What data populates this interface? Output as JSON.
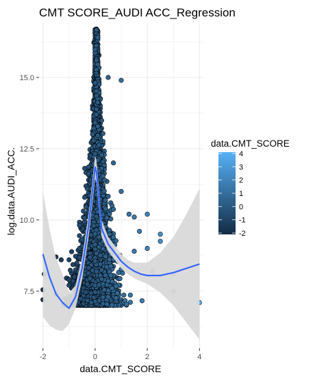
{
  "chart_data": {
    "type": "scatter",
    "title": "CMT SCORE_AUDI ACC_Regression",
    "xlabel": "data.CMT_SCORE",
    "ylabel": "log.data.AUDI_ACC.",
    "xlim": [
      -2.15,
      4.15
    ],
    "ylim": [
      5.5,
      16.9
    ],
    "x_ticks": [
      -2,
      0,
      2,
      4
    ],
    "x_tick_labels": [
      "-2",
      "0",
      "2",
      "4"
    ],
    "y_ticks": [
      7.5,
      10.0,
      12.5,
      15.0
    ],
    "y_tick_labels": [
      "7.5",
      "10.0",
      "12.5",
      "15.0"
    ],
    "grid": true,
    "legend": {
      "title": "data.CMT_SCORE",
      "placement": "right",
      "type": "colorbar",
      "values": [
        4,
        3,
        2,
        1,
        0,
        -1,
        -2
      ],
      "labels": [
        "4",
        "3",
        "2",
        "1",
        "0",
        "-1",
        "-2"
      ],
      "range": [
        -2.1,
        4.1
      ],
      "low_color": "#132B43",
      "high_color": "#56B1F7"
    },
    "point_color_scale": {
      "low": "#132B43",
      "high": "#56B1F7"
    },
    "smooth": {
      "method": "loess",
      "color": "#3366FF",
      "ribbon_color": "#d9d9d9",
      "x": [
        -2.0,
        -1.75,
        -1.5,
        -1.25,
        -1.0,
        -0.75,
        -0.5,
        -0.25,
        0.0,
        0.05,
        0.1,
        0.25,
        0.5,
        0.75,
        1.0,
        1.25,
        1.5,
        1.75,
        2.0,
        2.5,
        3.0,
        3.5,
        4.0
      ],
      "y": [
        8.8,
        8.0,
        7.4,
        7.1,
        6.9,
        7.3,
        8.3,
        9.8,
        11.85,
        11.7,
        11.2,
        9.7,
        9.15,
        8.85,
        8.55,
        8.35,
        8.2,
        8.1,
        8.05,
        8.05,
        8.15,
        8.3,
        8.45
      ],
      "lower": [
        6.6,
        6.3,
        6.15,
        6.1,
        6.35,
        6.9,
        7.9,
        9.4,
        11.45,
        11.3,
        10.8,
        9.4,
        8.9,
        8.6,
        8.3,
        8.1,
        7.95,
        7.85,
        7.75,
        7.45,
        7.0,
        6.4,
        5.8
      ],
      "upper": [
        11.0,
        9.7,
        8.65,
        8.1,
        7.45,
        7.7,
        8.7,
        10.2,
        12.25,
        12.1,
        11.6,
        10.0,
        9.4,
        9.1,
        8.8,
        8.6,
        8.5,
        8.5,
        8.5,
        8.85,
        9.4,
        10.2,
        11.1
      ]
    },
    "points": [
      {
        "x": -2.0,
        "y": 7.2
      },
      {
        "x": -2.0,
        "y": 7.55
      },
      {
        "x": -1.95,
        "y": 8.1
      },
      {
        "x": -1.5,
        "y": 8.7
      },
      {
        "x": -1.3,
        "y": 8.6
      },
      {
        "x": -1.5,
        "y": 7.4
      },
      {
        "x": -1.0,
        "y": 8.6
      },
      {
        "x": -1.0,
        "y": 7.9
      },
      {
        "x": -0.8,
        "y": 8.0
      },
      {
        "x": -0.5,
        "y": 9.3
      },
      {
        "x": -0.6,
        "y": 9.0
      },
      {
        "x": 1.0,
        "y": 14.9
      },
      {
        "x": 0.5,
        "y": 15.0
      },
      {
        "x": 0.7,
        "y": 12.0
      },
      {
        "x": 1.0,
        "y": 11.0
      },
      {
        "x": 1.3,
        "y": 10.2
      },
      {
        "x": 1.5,
        "y": 10.1
      },
      {
        "x": 2.0,
        "y": 10.2
      },
      {
        "x": 2.0,
        "y": 9.0
      },
      {
        "x": 2.5,
        "y": 9.5
      },
      {
        "x": 2.5,
        "y": 9.25
      },
      {
        "x": 2.2,
        "y": 8.2
      },
      {
        "x": 3.0,
        "y": 8.1
      },
      {
        "x": 3.0,
        "y": 7.5
      },
      {
        "x": 4.0,
        "y": 7.1
      },
      {
        "x": 1.7,
        "y": 9.6
      },
      {
        "x": 1.5,
        "y": 8.9
      }
    ],
    "point_cloud": {
      "peak_x": 0.05,
      "y_min": 7.0,
      "y_max": 16.7,
      "x_spread_at_bottom": [
        -1.2,
        2.3
      ],
      "count": 3200,
      "seed": 7
    }
  }
}
